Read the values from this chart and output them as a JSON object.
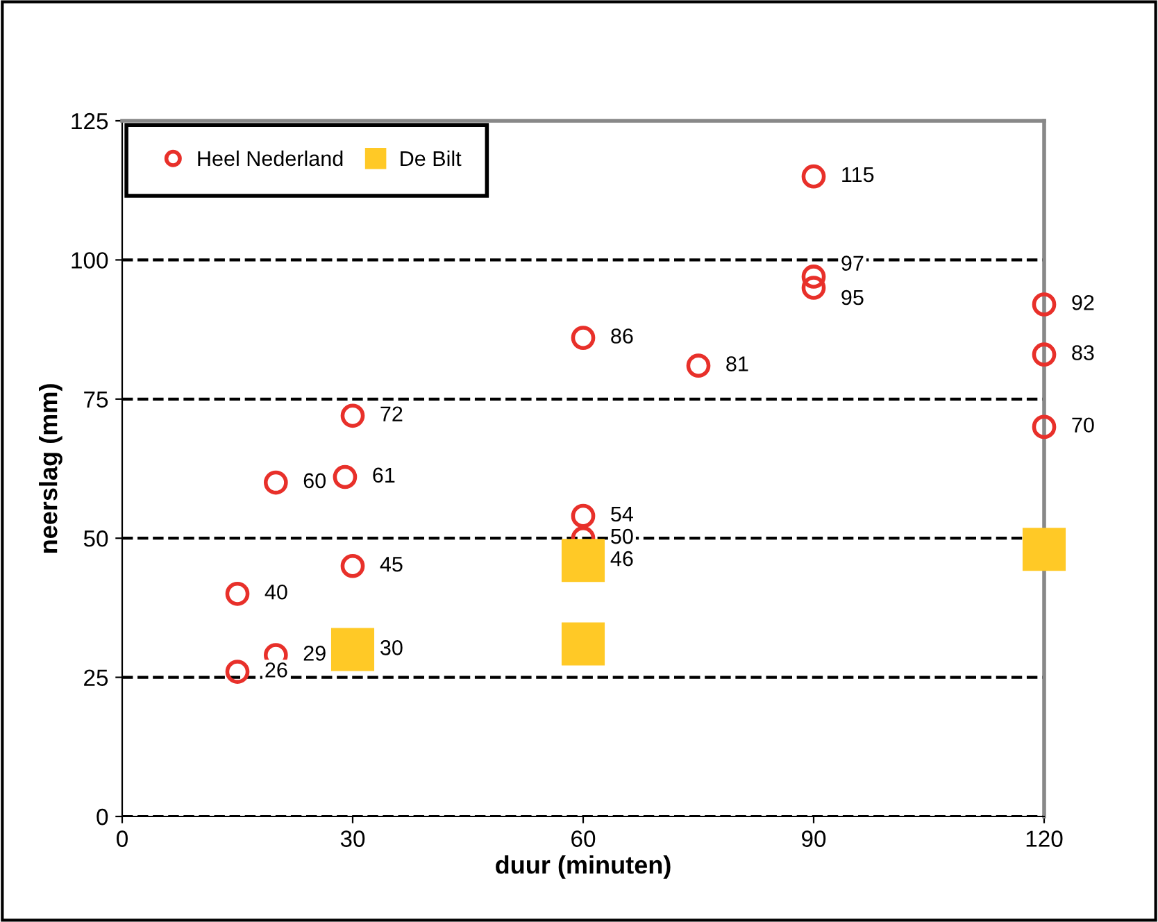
{
  "chart_data": {
    "type": "scatter",
    "xlabel": "duur (minuten)",
    "ylabel": "neerslag (mm)",
    "xlim": [
      0,
      120
    ],
    "xticks": [
      0,
      30,
      60,
      90,
      120
    ],
    "ylim": [
      0,
      125
    ],
    "yticks": [
      0,
      25,
      50,
      75,
      100,
      125
    ],
    "grid": "y",
    "legend": "top left",
    "series": [
      {
        "name": "Heel Nederland",
        "color": "#e8302a",
        "marker": "circle",
        "x": [
          15,
          15,
          20,
          20,
          29,
          30,
          30,
          60,
          60,
          60,
          75,
          90,
          90,
          90,
          120,
          120,
          120
        ],
        "values": [
          26,
          40,
          29,
          60,
          61,
          45,
          72,
          50,
          54,
          86,
          81,
          95,
          97,
          115,
          70,
          83,
          92
        ],
        "value_labels": [
          "26",
          "40",
          "29",
          "60",
          "61",
          "45",
          "72",
          "50",
          "54",
          "86",
          "81",
          "95",
          "97",
          "115",
          "70",
          "83",
          "92"
        ]
      },
      {
        "name": "De Bilt",
        "color": "#ffc926",
        "marker": "square",
        "x": [
          30,
          60,
          60,
          120
        ],
        "values": [
          30,
          46,
          31,
          48
        ],
        "value_labels": [
          "30",
          "46",
          null,
          null
        ]
      }
    ]
  }
}
